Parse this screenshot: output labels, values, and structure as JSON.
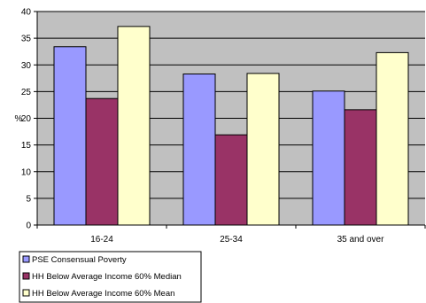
{
  "chart_data": {
    "type": "bar",
    "title": "",
    "xlabel": "",
    "ylabel": "%",
    "ylim": [
      0,
      40
    ],
    "yticks": [
      0,
      5,
      10,
      15,
      20,
      25,
      30,
      35,
      40
    ],
    "grid": true,
    "legend_position": "bottom-left",
    "categories": [
      "16-24",
      "25-34",
      "35 and over"
    ],
    "series": [
      {
        "name": "PSE Consensual Poverty",
        "color": "#9999FF",
        "values": [
          33.4,
          28.3,
          25.1
        ]
      },
      {
        "name": "HH Below Average Income 60% Median",
        "color": "#993366",
        "values": [
          23.7,
          16.9,
          21.6
        ]
      },
      {
        "name": "HH Below Average Income 60% Mean",
        "color": "#FFFFCC",
        "values": [
          37.2,
          28.4,
          32.3
        ]
      }
    ],
    "plot_background": "#C0C0C0"
  }
}
